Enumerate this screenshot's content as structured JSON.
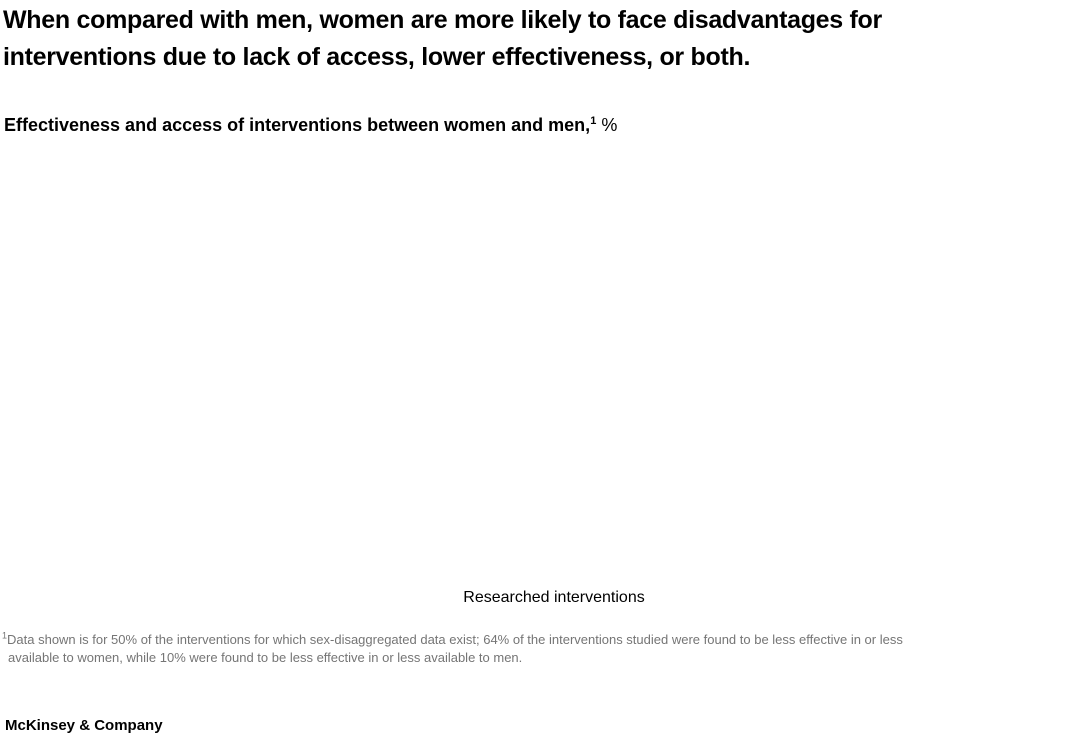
{
  "exhibit": {
    "title_lines": [
      "When compared with men, women are more likely to face disadvantages for",
      "interventions due to lack of access, lower effectiveness, or both."
    ],
    "subtitle": {
      "text": "Effectiveness and access of interventions between women and men,",
      "footnote_marker": "1",
      "unit": "%"
    },
    "chart": {
      "x_axis_label": "Researched interventions"
    },
    "footnote": {
      "marker": "1",
      "line1": "Data shown is for 50% of the interventions for which sex-disaggregated data exist; 64% of the interventions studied were found to be less effective in or less",
      "line2": "available to women, while 10% were found to be less effective in or less available to men."
    },
    "source_brand": "McKinsey & Company"
  },
  "colors": {
    "background": "#ffffff",
    "text_primary": "#000000",
    "footnote_gray": "#757575"
  },
  "chart_data": {
    "type": "bar",
    "title": "Effectiveness and access of interventions between women and men, %",
    "xlabel": "Researched interventions",
    "ylabel": "",
    "categories": [
      "Researched interventions"
    ],
    "series": [],
    "values_visible_in_pixels": false,
    "annotations": [
      "50% of interventions have sex-disaggregated data (from footnote)",
      "64% of interventions studied less effective in or less available to women (from footnote)",
      "10% less effective in or less available to men (from footnote)"
    ],
    "legend_position": "none",
    "grid": false
  }
}
